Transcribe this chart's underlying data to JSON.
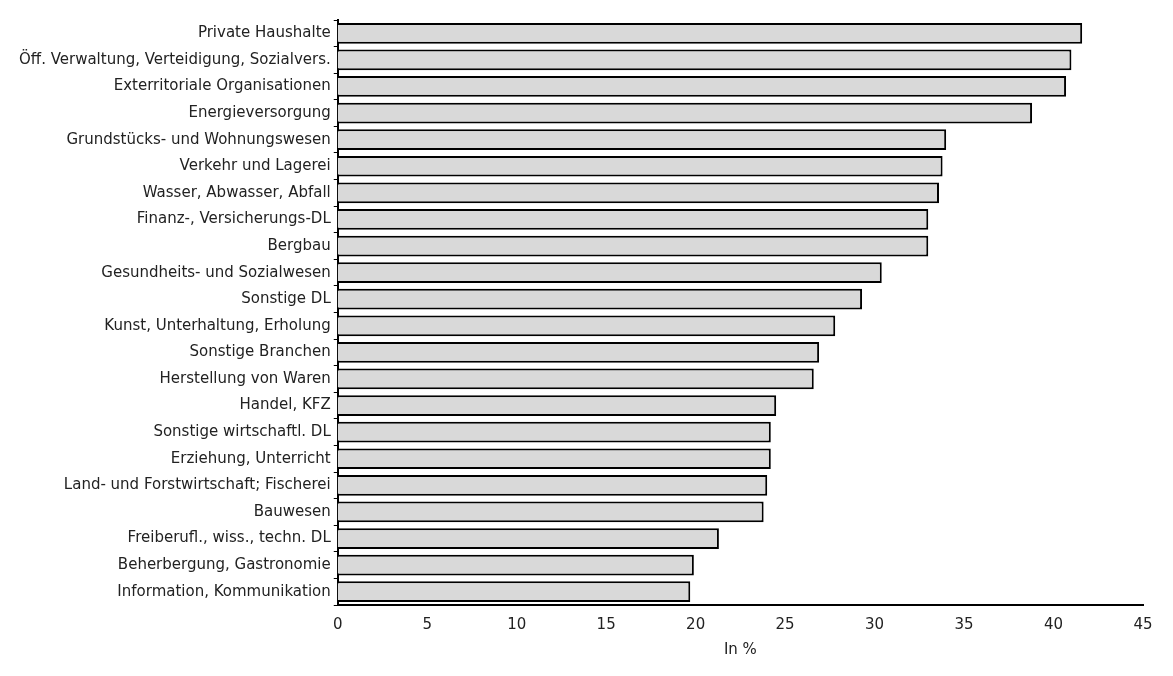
{
  "chart_data": {
    "type": "bar",
    "orientation": "horizontal",
    "xlabel": "In %",
    "categories": [
      "Private Haushalte",
      "Öff. Verwaltung, Verteidigung, Sozialvers.",
      "Exterritoriale Organisationen",
      "Energieversorgung",
      "Grundstücks- und Wohnungswesen",
      "Verkehr und Lagerei",
      "Wasser, Abwasser, Abfall",
      "Finanz-, Versicherungs-DL",
      "Bergbau",
      "Gesundheits- und Sozialwesen",
      "Sonstige DL",
      "Kunst, Unterhaltung, Erholung",
      "Sonstige Branchen",
      "Herstellung von Waren",
      "Handel, KFZ",
      "Sonstige wirtschaftl. DL",
      "Erziehung, Unterricht",
      "Land- und Forstwirtschaft; Fischerei",
      "Bauwesen",
      "Freiberufl., wiss., techn. DL",
      "Beherbergung, Gastronomie",
      "Information, Kommunikation"
    ],
    "values": [
      41.6,
      41.0,
      40.7,
      38.8,
      34.0,
      33.8,
      33.6,
      33.0,
      33.0,
      30.4,
      29.3,
      27.8,
      26.9,
      26.6,
      24.5,
      24.2,
      24.2,
      24.0,
      23.8,
      21.3,
      19.9,
      19.7
    ],
    "color": "#d9d9d9",
    "xlim": [
      0,
      45
    ],
    "xticks": [
      0,
      5,
      10,
      15,
      20,
      25,
      30,
      35,
      40,
      45
    ],
    "grid": false,
    "legend": false
  }
}
